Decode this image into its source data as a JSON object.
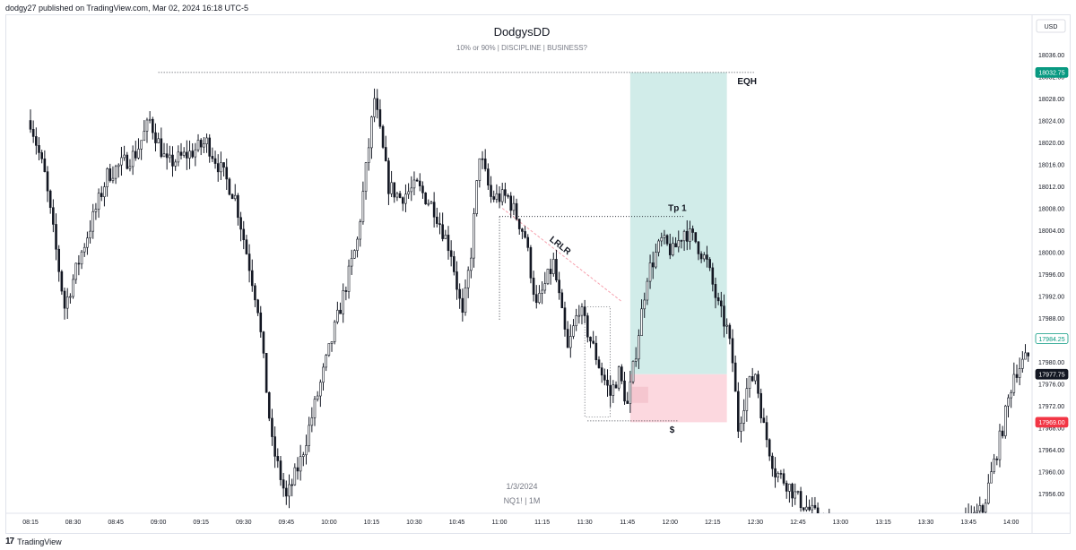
{
  "header": {
    "published": "dodgy27 published on TradingView.com, Mar 02, 2024 16:18 UTC-5"
  },
  "footer": {
    "logo_glyph": "17",
    "brand": "TradingView"
  },
  "chart_data": {
    "type": "candlestick",
    "title": "DodgysDD",
    "subtitle": "10% or 90%   |   DISCIPLINE   |   BUSINESS?",
    "watermark_date": "1/3/2024",
    "watermark_symbol": "NQ1!  |  1M",
    "currency": "USD",
    "ylim": [
      17952,
      18040
    ],
    "y_ticks": [
      18036,
      18032,
      18028,
      18024,
      18020,
      18016,
      18012,
      18008,
      18004,
      18000,
      17996,
      17992,
      17988,
      17984,
      17980,
      17976,
      17972,
      17968,
      17964,
      17960,
      17956
    ],
    "y_tick_labels": [
      "18036.00",
      "18032.00",
      "18028.00",
      "18024.00",
      "18020.00",
      "18016.00",
      "18012.00",
      "18008.00",
      "18004.00",
      "18000.00",
      "17996.00",
      "17992.00",
      "17988.00",
      "17984.00",
      "17980.00",
      "17976.00",
      "17972.00",
      "17968.00",
      "17964.00",
      "17960.00",
      "17956.00"
    ],
    "x_tick_labels": [
      "08:15",
      "08:30",
      "08:45",
      "09:00",
      "09:15",
      "09:30",
      "09:45",
      "10:00",
      "10:15",
      "10:30",
      "10:45",
      "11:00",
      "11:15",
      "11:30",
      "11:45",
      "12:00",
      "12:15",
      "12:30",
      "12:45",
      "13:00",
      "13:15",
      "13:30",
      "13:45",
      "14:00"
    ],
    "x_tick_minutes": [
      0,
      15,
      30,
      45,
      60,
      75,
      90,
      105,
      120,
      135,
      150,
      165,
      180,
      195,
      210,
      225,
      240,
      255,
      270,
      285,
      300,
      315,
      330,
      345
    ],
    "price_path_anchors": [
      [
        0,
        18024
      ],
      [
        5,
        18014
      ],
      [
        12,
        17990
      ],
      [
        18,
        18000
      ],
      [
        27,
        18014
      ],
      [
        37,
        18018
      ],
      [
        42,
        18024
      ],
      [
        48,
        18016
      ],
      [
        56,
        18018
      ],
      [
        62,
        18020
      ],
      [
        68,
        18014
      ],
      [
        72,
        18010
      ],
      [
        80,
        17990
      ],
      [
        85,
        17965
      ],
      [
        90,
        17955
      ],
      [
        95,
        17962
      ],
      [
        100,
        17972
      ],
      [
        108,
        17988
      ],
      [
        115,
        18002
      ],
      [
        121,
        18028
      ],
      [
        126,
        18012
      ],
      [
        130,
        18010
      ],
      [
        136,
        18012
      ],
      [
        142,
        18008
      ],
      [
        148,
        18000
      ],
      [
        152,
        17988
      ],
      [
        155,
        18000
      ],
      [
        158,
        18018
      ],
      [
        162,
        18010
      ],
      [
        168,
        18010
      ],
      [
        174,
        18003
      ],
      [
        178,
        17990
      ],
      [
        184,
        17998
      ],
      [
        189,
        17982
      ],
      [
        193,
        17990
      ],
      [
        197,
        17984
      ],
      [
        201,
        17978
      ],
      [
        204,
        17974
      ],
      [
        207,
        17978
      ],
      [
        210,
        17972
      ],
      [
        213,
        17982
      ],
      [
        217,
        17996
      ],
      [
        222,
        18002
      ],
      [
        226,
        18000
      ],
      [
        230,
        18004
      ],
      [
        234,
        18002
      ],
      [
        238,
        17998
      ],
      [
        242,
        17990
      ],
      [
        245,
        17986
      ],
      [
        247,
        17980
      ],
      [
        249,
        17968
      ],
      [
        252,
        17975
      ],
      [
        255,
        17978
      ],
      [
        258,
        17968
      ],
      [
        262,
        17960
      ],
      [
        266,
        17958
      ],
      [
        270,
        17955
      ],
      [
        280,
        17950
      ],
      [
        300,
        17948
      ],
      [
        320,
        17947
      ],
      [
        335,
        17953
      ],
      [
        342,
        17968
      ],
      [
        346,
        17978
      ],
      [
        351,
        17981
      ]
    ],
    "annotations": {
      "eqh": {
        "label": "EQH",
        "price": 18032.75,
        "start_minute": 45,
        "end_minute": 255
      },
      "tp1": {
        "label": "Tp 1",
        "price": 18006.5,
        "start_minute": 165,
        "end_minute": 230
      },
      "sweep": {
        "label": "$",
        "price": 17969.25,
        "start_minute": 196,
        "end_minute": 228
      },
      "lrlr": {
        "label": "LRLR",
        "start": [
          166,
          18008
        ],
        "end": [
          208,
          17991
        ]
      },
      "range_box": {
        "start_minute": 195,
        "end_minute": 204,
        "top": 17990,
        "bottom": 17970
      }
    },
    "position": {
      "entry": 17977.75,
      "target": 18032.75,
      "stop": 17969.0,
      "start_minute": 211,
      "end_minute": 245,
      "profit_color": "#d1ece9",
      "loss_color": "#fcd8df"
    },
    "price_badges": [
      {
        "label": "18032.75",
        "price": 18032.75,
        "color": "#089981",
        "style": "filled"
      },
      {
        "label": "17984.25",
        "price": 17984.25,
        "color": "#089981",
        "style": "outline"
      },
      {
        "label": "17977.75",
        "price": 17977.75,
        "color": "#131722",
        "style": "filled"
      },
      {
        "label": "17969.00",
        "price": 17969.0,
        "color": "#f23645",
        "style": "filled"
      }
    ],
    "colors": {
      "candle": "#131722",
      "grid": "#f0f3fa",
      "axis_text": "#131722",
      "lrlr_line": "#f7a1ae"
    },
    "grid": false,
    "legend": "none"
  }
}
